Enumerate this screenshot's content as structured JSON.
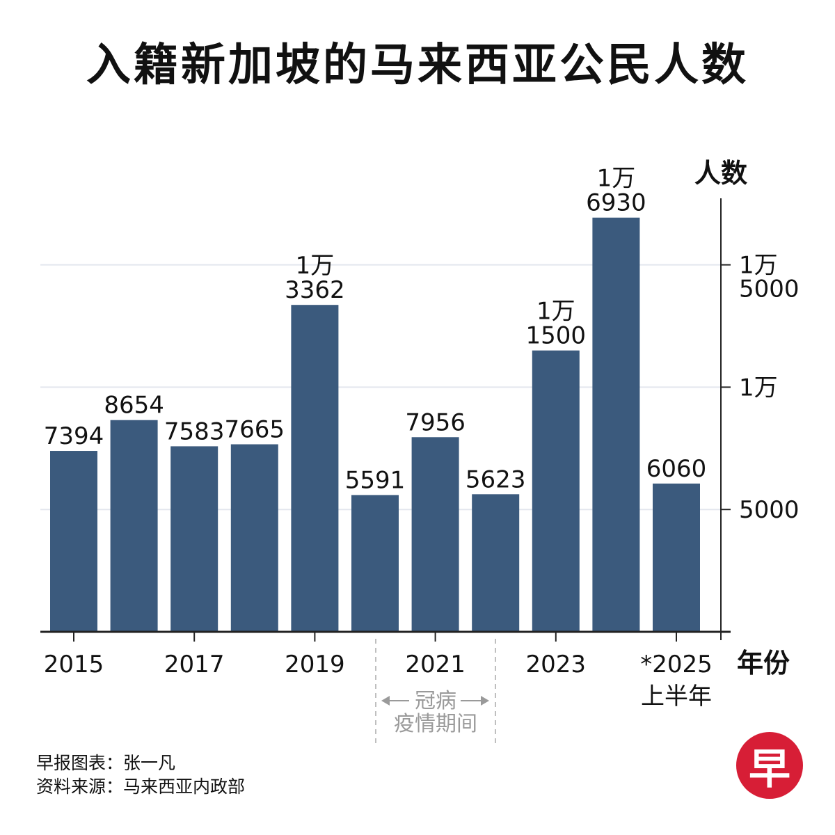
{
  "title": "入籍新加坡的马来西亚公民人数",
  "chart_data": {
    "type": "bar",
    "categories": [
      "2015",
      "2016",
      "2017",
      "2018",
      "2019",
      "2020",
      "2021",
      "2022",
      "2023",
      "2024",
      "*2025"
    ],
    "x_tick_labels": [
      "2015",
      "2017",
      "2019",
      "2021",
      "2023",
      "*2025"
    ],
    "x_tick_sublabel": "上半年",
    "values": [
      7394,
      8654,
      7583,
      7665,
      13362,
      5591,
      7956,
      5623,
      11500,
      16930,
      6060
    ],
    "data_labels": [
      [
        "7394"
      ],
      [
        "8654"
      ],
      [
        "7583"
      ],
      [
        "7665"
      ],
      [
        "1万",
        "3362"
      ],
      [
        "5591"
      ],
      [
        "7956"
      ],
      [
        "5623"
      ],
      [
        "1万",
        "1500"
      ],
      [
        "1万",
        "6930"
      ],
      [
        "6060"
      ]
    ],
    "ylabel": "人数",
    "xlabel": "年份",
    "ylim": [
      0,
      17500
    ],
    "y_ticks": [
      {
        "value": 5000,
        "label": [
          "5000"
        ]
      },
      {
        "value": 10000,
        "label": [
          "1万"
        ]
      },
      {
        "value": 15000,
        "label": [
          "1万",
          "5000"
        ]
      }
    ],
    "grid": true,
    "bar_color": "#3b5a7d",
    "grid_color": "#e3e6ee",
    "annotation": {
      "lines": [
        "冠病",
        "疫情期间"
      ],
      "span": [
        "2020",
        "2022"
      ],
      "color": "#9a9a9a"
    }
  },
  "credits": {
    "line1": "早报图表：张一凡",
    "line2": "资料来源：马来西亚内政部"
  },
  "logo_text": "早"
}
